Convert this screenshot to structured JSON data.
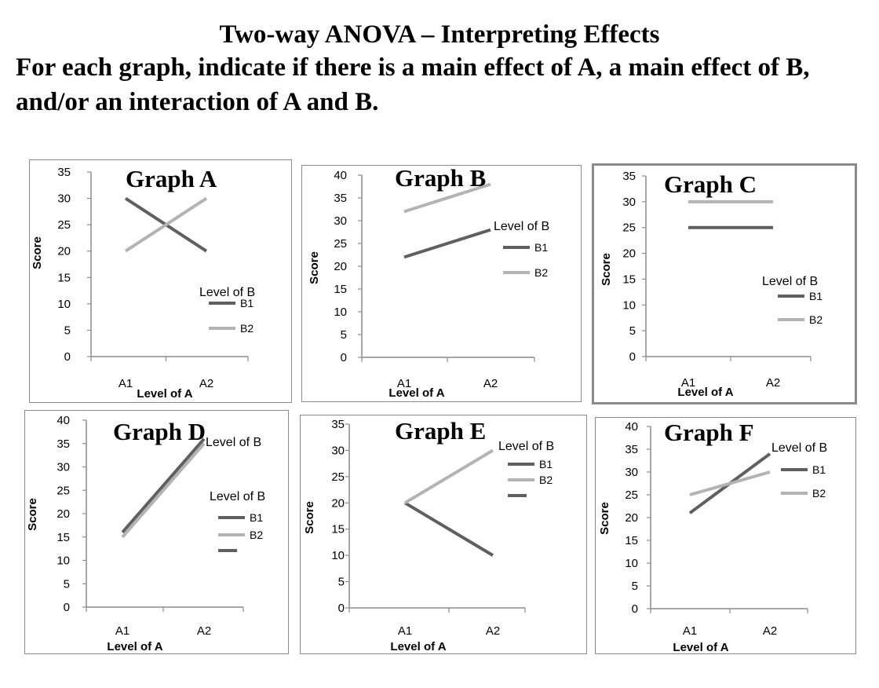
{
  "page": {
    "title": "Two-way ANOVA – Interpreting Effects",
    "instruction": "For each graph, indicate if there is a main effect of A, a main effect of B, and/or an interaction of A and B."
  },
  "colors": {
    "B1": "#5f5f5f",
    "B2": "#b3b3b3",
    "axis": "#8c8c8c",
    "border": "#8a8a8a"
  },
  "chart_data": [
    {
      "type": "line",
      "title": "Graph  A",
      "xlabel": "Level of A",
      "ylabel": "Score",
      "categories": [
        "A1",
        "A2"
      ],
      "ylim": [
        0,
        35
      ],
      "yticks": [
        0,
        5,
        10,
        15,
        20,
        25,
        30,
        35
      ],
      "legend_title": "Level of B",
      "series": [
        {
          "name": "B1",
          "values": [
            30,
            20
          ]
        },
        {
          "name": "B2",
          "values": [
            20,
            30
          ]
        }
      ]
    },
    {
      "type": "line",
      "title": "Graph  B",
      "xlabel": "Level of A",
      "ylabel": "Score",
      "categories": [
        "A1",
        "A2"
      ],
      "ylim": [
        0,
        40
      ],
      "yticks": [
        0,
        5,
        10,
        15,
        20,
        25,
        30,
        35,
        40
      ],
      "legend_title": "Level of B",
      "series": [
        {
          "name": "B1",
          "values": [
            22,
            28
          ]
        },
        {
          "name": "B2",
          "values": [
            32,
            38
          ]
        }
      ]
    },
    {
      "type": "line",
      "title": "Graph  C",
      "xlabel": "Level of A",
      "ylabel": "Score",
      "categories": [
        "A1",
        "A2"
      ],
      "ylim": [
        0,
        35
      ],
      "yticks": [
        0,
        5,
        10,
        15,
        20,
        25,
        30,
        35
      ],
      "legend_title": "Level of B",
      "series": [
        {
          "name": "B1",
          "values": [
            25,
            25
          ]
        },
        {
          "name": "B2",
          "values": [
            30,
            30
          ]
        }
      ]
    },
    {
      "type": "line",
      "title": "Graph  D",
      "xlabel": "Level of A",
      "ylabel": "Score",
      "categories": [
        "A1",
        "A2"
      ],
      "ylim": [
        0,
        40
      ],
      "yticks": [
        0,
        5,
        10,
        15,
        20,
        25,
        30,
        35,
        40
      ],
      "legend_title": "Level of B",
      "legend_title_top": "Level of B",
      "series": [
        {
          "name": "B1",
          "values": [
            16,
            36
          ]
        },
        {
          "name": "B2",
          "values": [
            15,
            35
          ]
        }
      ]
    },
    {
      "type": "line",
      "title": "Graph  E",
      "xlabel": "Level of A",
      "ylabel": "Score",
      "categories": [
        "A1",
        "A2"
      ],
      "ylim": [
        0,
        35
      ],
      "yticks": [
        0,
        5,
        10,
        15,
        20,
        25,
        30,
        35
      ],
      "legend_title": "Level of B",
      "series": [
        {
          "name": "B1",
          "values": [
            20,
            10
          ]
        },
        {
          "name": "B2",
          "values": [
            20,
            30
          ]
        }
      ]
    },
    {
      "type": "line",
      "title": "Graph  F",
      "xlabel": "Level of A",
      "ylabel": "Score",
      "categories": [
        "A1",
        "A2"
      ],
      "ylim": [
        0,
        40
      ],
      "yticks": [
        0,
        5,
        10,
        15,
        20,
        25,
        30,
        35,
        40
      ],
      "legend_title": "Level of B",
      "series": [
        {
          "name": "B1",
          "values": [
            21,
            34
          ]
        },
        {
          "name": "B2",
          "values": [
            25,
            30
          ]
        }
      ]
    }
  ]
}
